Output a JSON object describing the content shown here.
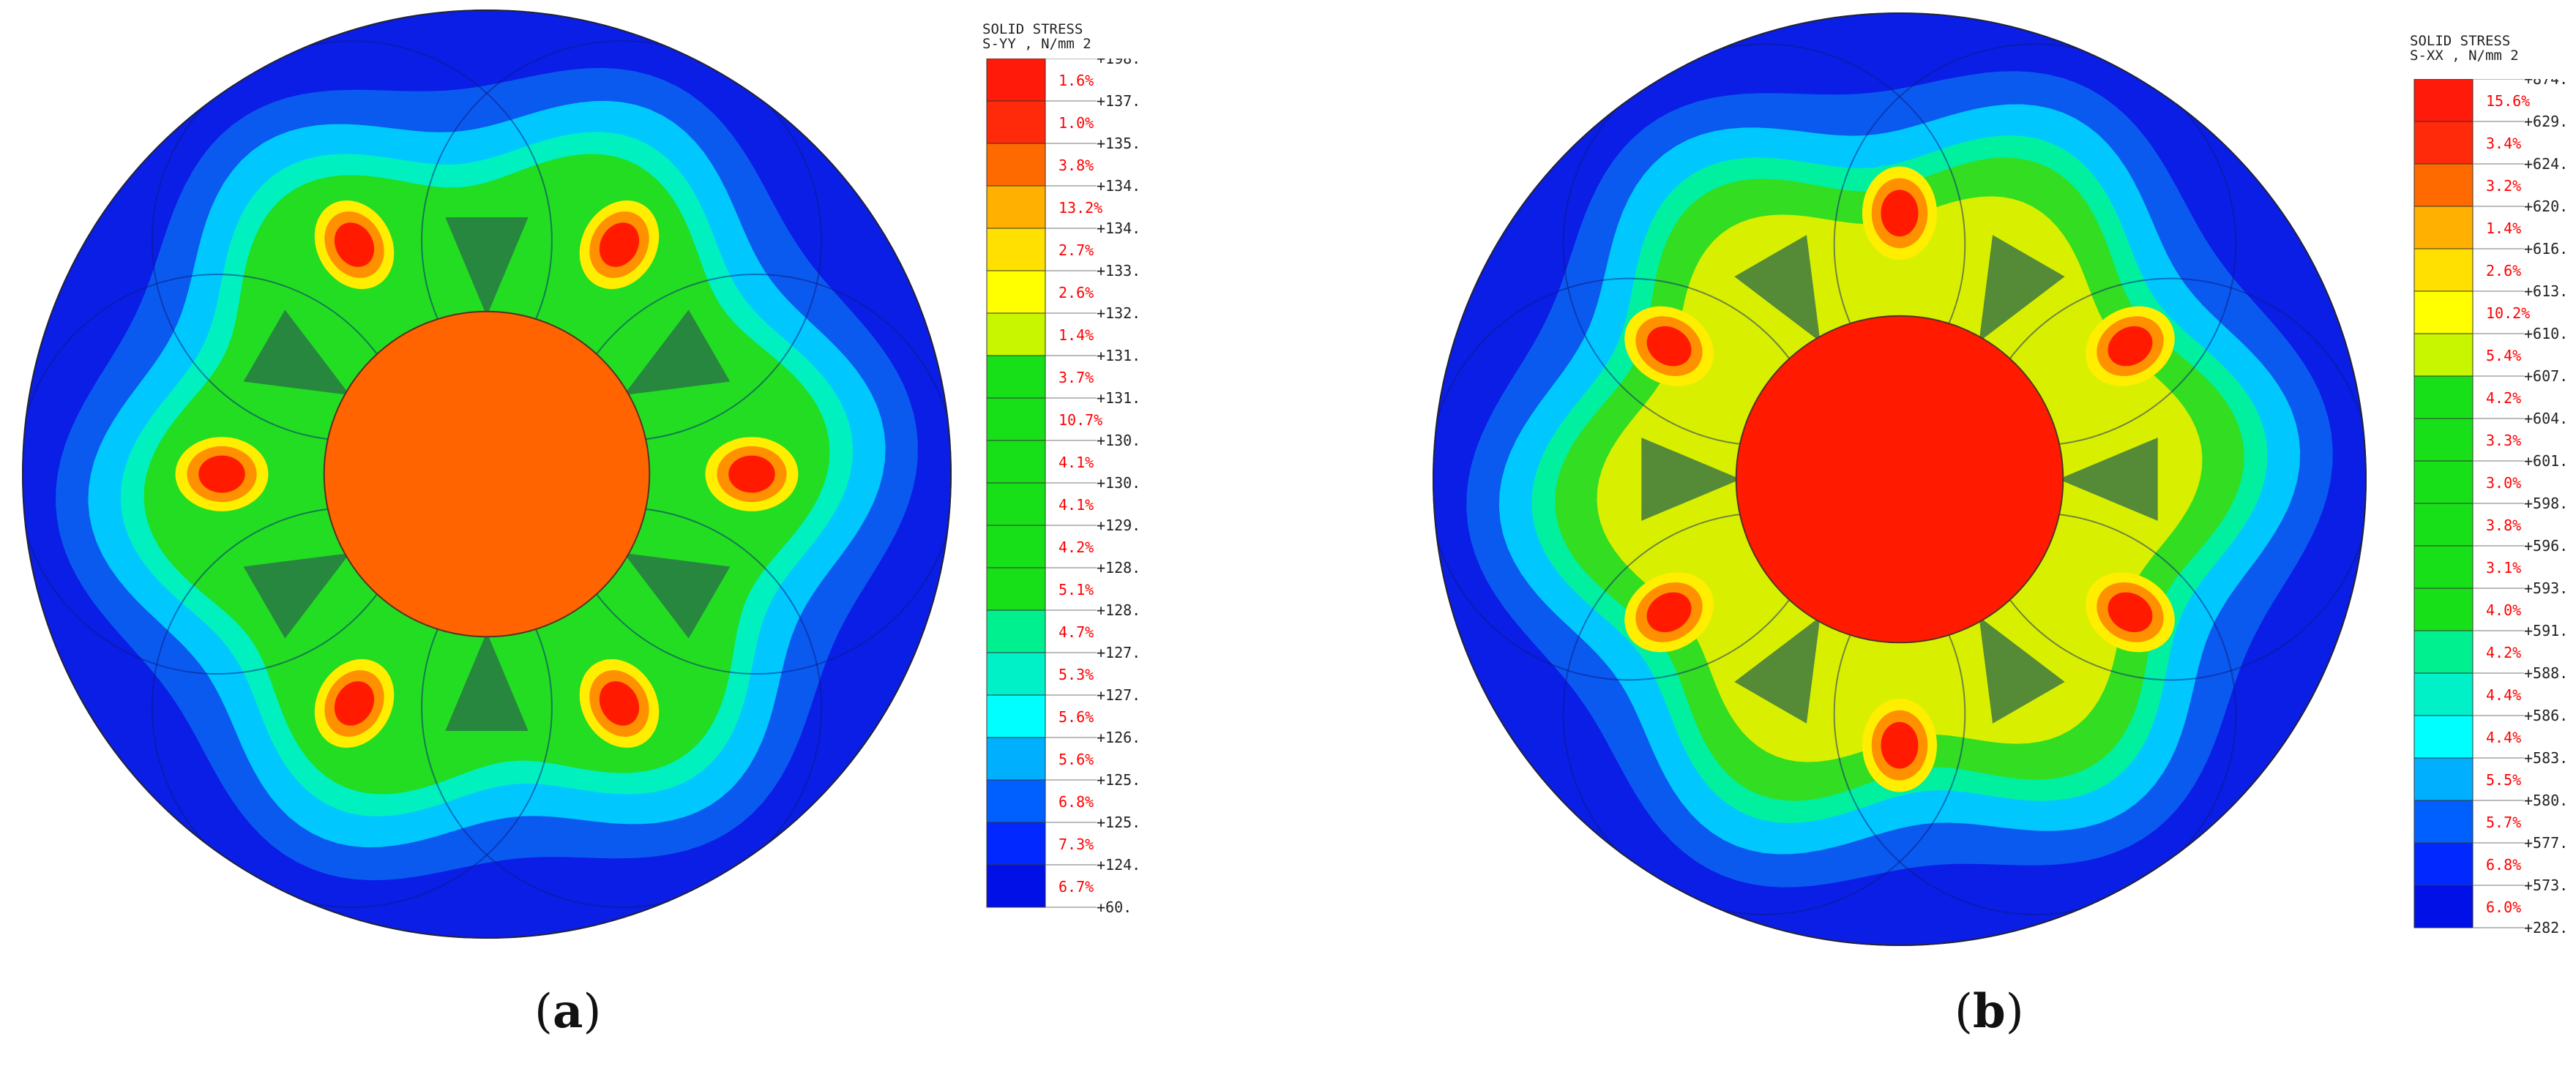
{
  "panels": [
    {
      "id": "a",
      "caption_open": "(",
      "caption_letter": "a",
      "caption_close": ")",
      "legend": {
        "title_line1": "SOLID STRESS",
        "title_line2": "S-YY , N/mm 2",
        "levels": [
          "+198.",
          "+137.",
          "+135.",
          "+134.",
          "+134.",
          "+133.",
          "+132.",
          "+131.",
          "+131.",
          "+130.",
          "+130.",
          "+129.",
          "+128.",
          "+128.",
          "+127.",
          "+127.",
          "+126.",
          "+125.",
          "+125.",
          "+124.",
          "+60."
        ],
        "percents": [
          "1.6%",
          "1.0%",
          "3.8%",
          "13.2%",
          "2.7%",
          "2.6%",
          "1.4%",
          "3.7%",
          "10.7%",
          "4.1%",
          "4.1%",
          "4.2%",
          "5.1%",
          "4.7%",
          "5.3%",
          "5.6%",
          "5.6%",
          "6.8%",
          "7.3%",
          "6.7%"
        ],
        "colors": [
          "#ff1a0a",
          "#ff2a0a",
          "#ff6a00",
          "#ffb000",
          "#ffe000",
          "#ffff00",
          "#c8f500",
          "#18e018",
          "#18e018",
          "#18e018",
          "#18e018",
          "#18e018",
          "#18e018",
          "#00f090",
          "#00f0c8",
          "#00ffff",
          "#00b0ff",
          "#0060ff",
          "#0028ff",
          "#0010e6"
        ]
      },
      "contour": {
        "outer": "#0a1ee6",
        "ring2": "#0a5af0",
        "ring3": "#00c8ff",
        "ring4": "#00f0c0",
        "body": "#22dd22",
        "core": "#ff6400",
        "hot": "#ff1a00",
        "hot2": "#ff9000"
      }
    },
    {
      "id": "b",
      "caption_open": "(",
      "caption_letter": "b",
      "caption_close": ")",
      "legend": {
        "title_line1": "SOLID STRESS",
        "title_line2": "S-XX , N/mm 2",
        "levels": [
          "+874.",
          "+629.",
          "+624.",
          "+620.",
          "+616.",
          "+613.",
          "+610.",
          "+607.",
          "+604.",
          "+601.",
          "+598.",
          "+596.",
          "+593.",
          "+591.",
          "+588.",
          "+586.",
          "+583.",
          "+580.",
          "+577.",
          "+573.",
          "+282."
        ],
        "percents": [
          "15.6%",
          "3.4%",
          "3.2%",
          "1.4%",
          "2.6%",
          "10.2%",
          "5.4%",
          "4.2%",
          "3.3%",
          "3.0%",
          "3.8%",
          "3.1%",
          "4.0%",
          "4.2%",
          "4.4%",
          "4.4%",
          "5.5%",
          "5.7%",
          "6.8%",
          "6.0%"
        ],
        "colors": [
          "#ff1a0a",
          "#ff2a0a",
          "#ff6a00",
          "#ffb000",
          "#ffe000",
          "#ffff00",
          "#c8f500",
          "#18e018",
          "#18e018",
          "#18e018",
          "#18e018",
          "#18e018",
          "#18e018",
          "#00f090",
          "#00f0c8",
          "#00ffff",
          "#00b0ff",
          "#0060ff",
          "#0028ff",
          "#0010e6"
        ]
      },
      "contour": {
        "outer": "#0a1ee6",
        "ring2": "#0a5af0",
        "ring3": "#00c8ff",
        "ring4": "#00f0a0",
        "body": "#33dd22",
        "core": "#ff1a00",
        "hot": "#ff1a00",
        "hot2": "#ff9000"
      }
    }
  ]
}
